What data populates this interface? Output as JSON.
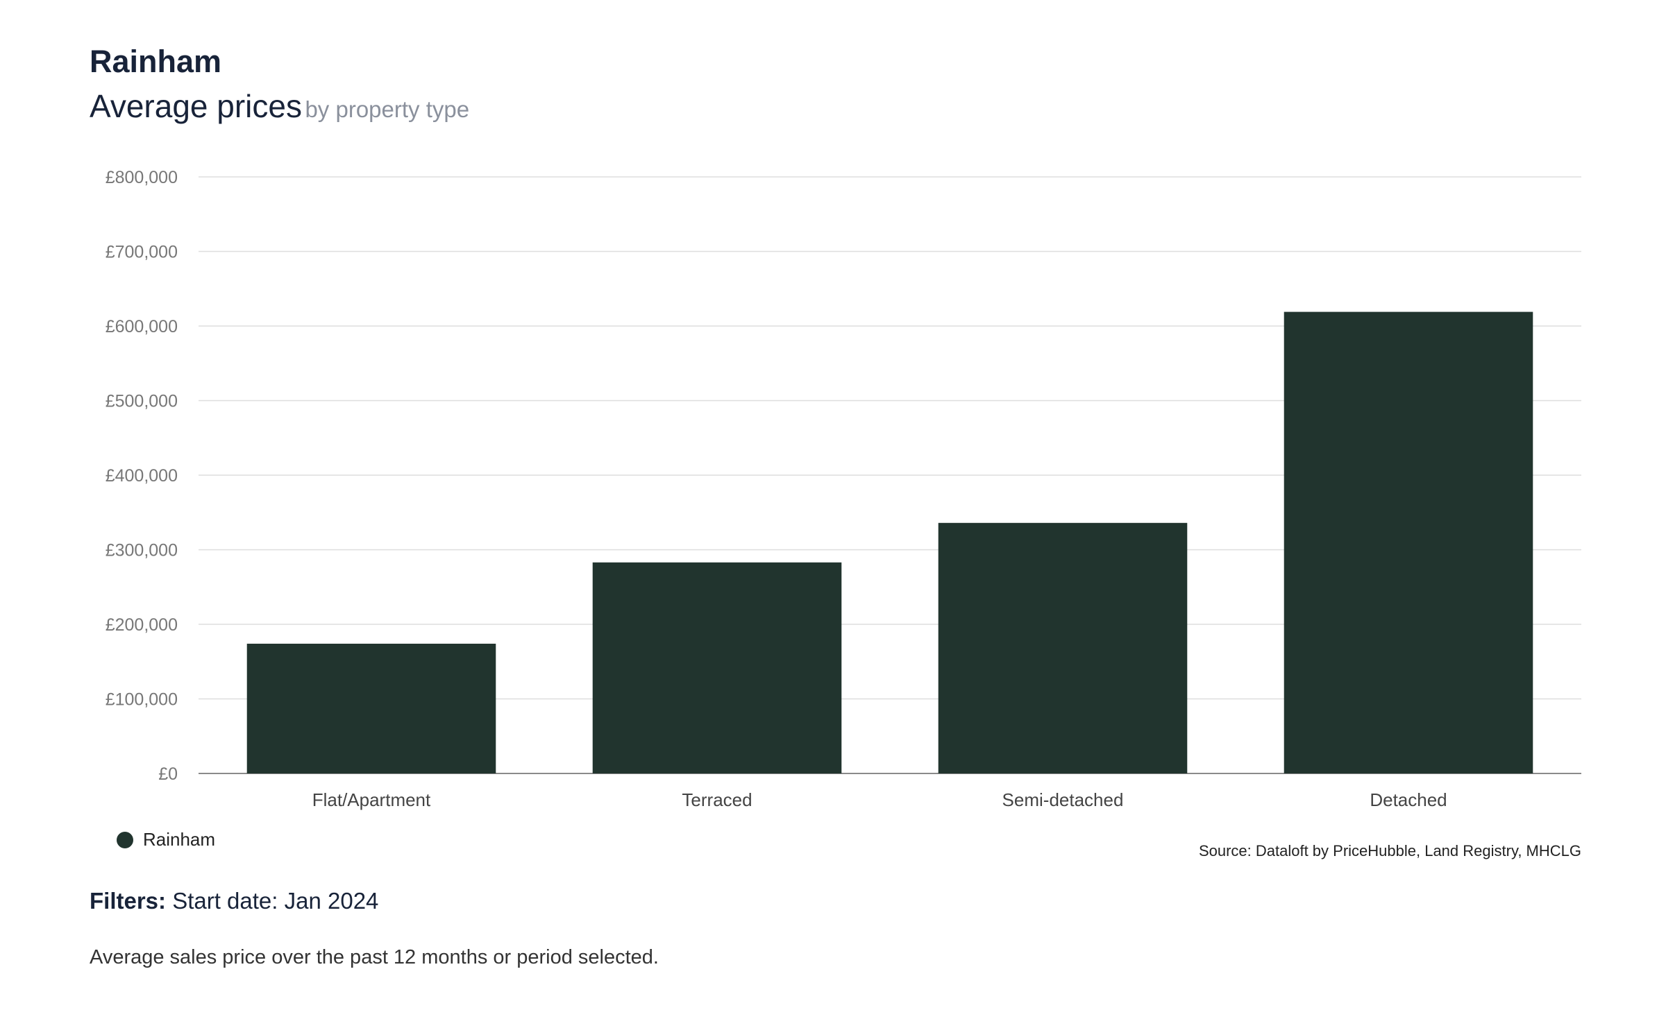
{
  "header": {
    "title": "Rainham",
    "subtitle_main": "Average prices",
    "subtitle_sub": "by property type"
  },
  "chart_data": {
    "type": "bar",
    "categories": [
      "Flat/Apartment",
      "Terraced",
      "Semi-detached",
      "Detached"
    ],
    "series": [
      {
        "name": "Rainham",
        "values": [
          174000,
          283000,
          336000,
          619000
        ],
        "color": "#21342e"
      }
    ],
    "yticks": [
      "£0",
      "£100,000",
      "£200,000",
      "£300,000",
      "£400,000",
      "£500,000",
      "£600,000",
      "£700,000",
      "£800,000"
    ],
    "ylim": [
      0,
      800000
    ],
    "grid": true,
    "legend_position": "bottom-left"
  },
  "legend": {
    "label": "Rainham",
    "color": "#21342e"
  },
  "footer": {
    "source": "Source: Dataloft by PriceHubble, Land Registry, MHCLG",
    "filters_label": "Filters:",
    "filters_value": " Start date: Jan 2024",
    "note": "Average sales price over the past 12 months or period selected."
  }
}
